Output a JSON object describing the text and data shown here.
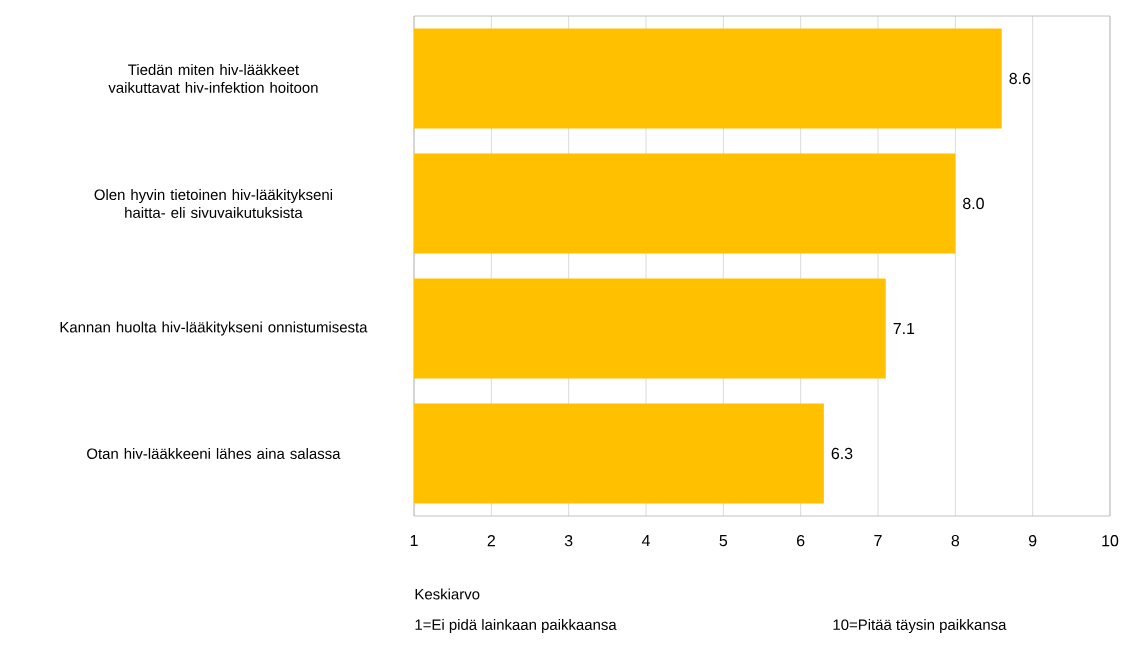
{
  "chart_data": {
    "type": "bar",
    "orientation": "horizontal",
    "categories": [
      "Tiedän miten hiv-lääkkeet vaikuttavat hiv-infektion hoitoon",
      "Olen hyvin tietoinen hiv-lääkitykseni haitta- eli sivuvaikutuksista",
      "Kannan huolta hiv-lääkitykseni onnistumisesta",
      "Otan hiv-lääkkeeni lähes aina salassa"
    ],
    "values": [
      8.6,
      8.0,
      7.1,
      6.3
    ],
    "value_labels": [
      "8.6",
      "8.0",
      "7.1",
      "6.3"
    ],
    "color": "#ffc000",
    "xlim": [
      1,
      10
    ],
    "xticks": [
      1,
      2,
      3,
      4,
      5,
      6,
      7,
      8,
      9,
      10
    ],
    "grid": "x",
    "annotations": [
      "Keskiarvo",
      "1=Ei pidä lainkaan paikkaansa",
      "10=Pitää täysin paikkansa"
    ]
  }
}
